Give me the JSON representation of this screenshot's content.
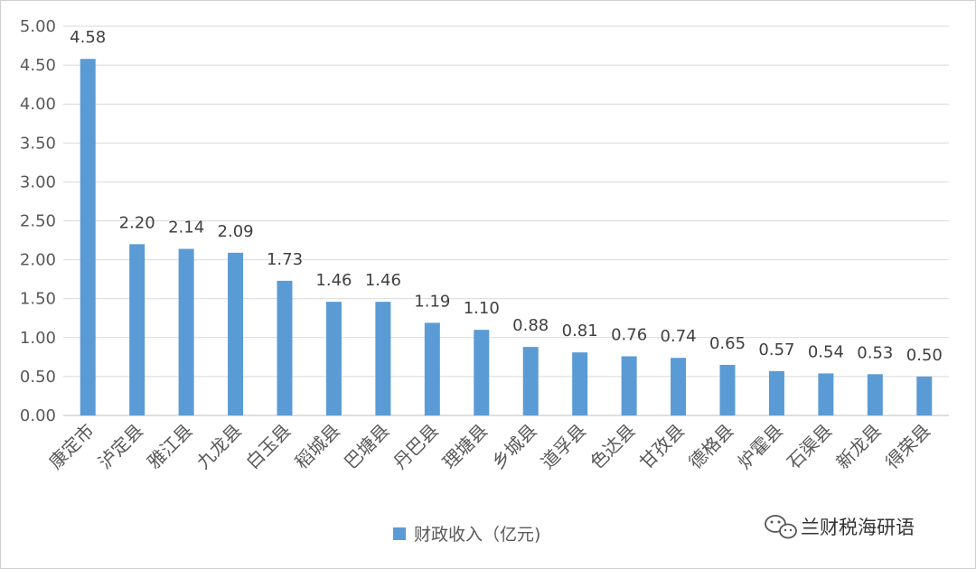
{
  "chart_data": {
    "type": "bar",
    "categories": [
      "康定市",
      "泸定县",
      "雅江县",
      "九龙县",
      "白玉县",
      "稻城县",
      "巴塘县",
      "丹巴县",
      "理塘县",
      "乡城县",
      "道孚县",
      "色达县",
      "甘孜县",
      "德格县",
      "炉霍县",
      "石渠县",
      "新龙县",
      "得荣县"
    ],
    "series": [
      {
        "name": "财政收入（亿元)",
        "values": [
          4.58,
          2.2,
          2.14,
          2.09,
          1.73,
          1.46,
          1.46,
          1.19,
          1.1,
          0.88,
          0.81,
          0.76,
          0.74,
          0.65,
          0.57,
          0.54,
          0.53,
          0.5
        ],
        "labels": [
          "4.58",
          "2.20",
          "2.14",
          "2.09",
          "1.73",
          "1.46",
          "1.46",
          "1.19",
          "1.10",
          "0.88",
          "0.81",
          "0.76",
          "0.74",
          "0.65",
          "0.57",
          "0.54",
          "0.53",
          "0.50"
        ],
        "color": "#5b9bd5"
      }
    ],
    "yticks": [
      "0.00",
      "0.50",
      "1.00",
      "1.50",
      "2.00",
      "2.50",
      "3.00",
      "3.50",
      "4.00",
      "4.50",
      "5.00"
    ],
    "ylim": [
      0,
      5
    ],
    "grid": true,
    "legend_position": "bottom"
  },
  "legend": {
    "label": "财政收入（亿元)",
    "color": "#5b9bd5"
  },
  "watermark": {
    "text": "兰财税海研语"
  }
}
